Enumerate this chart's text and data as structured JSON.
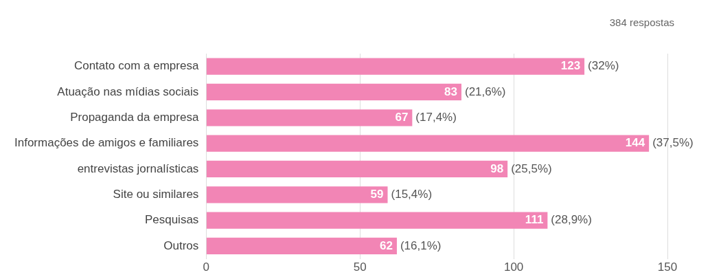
{
  "chart_data": {
    "type": "bar",
    "orientation": "horizontal",
    "categories": [
      "Contato com a empresa",
      "Atuação nas mídias sociais",
      "Propaganda da empresa",
      "Informações de amigos e familiares",
      "entrevistas jornalísticas",
      "Site ou similares",
      "Pesquisas",
      "Outros"
    ],
    "values": [
      123,
      83,
      67,
      144,
      98,
      59,
      111,
      62
    ],
    "value_labels": [
      "123",
      "83",
      "67",
      "144",
      "98",
      "59",
      "111",
      "62"
    ],
    "color": "#f285b5",
    "xlim": [
      0,
      150
    ],
    "xticks": [
      0,
      50,
      100,
      150
    ],
    "grid": "x",
    "legend": false,
    "annotations": [
      "384 respostas",
      {
        "text": "(32%)",
        "x": 123,
        "y": "Contato com a empresa"
      },
      {
        "text": "(21,6%)",
        "x": 83,
        "y": "Atuação nas mídias sociais"
      },
      {
        "text": "(17,4%)",
        "x": 67,
        "y": "Propaganda da empresa"
      },
      {
        "text": "(37,5%)",
        "x": 144,
        "y": "Informações de amigos e familiares"
      },
      {
        "text": "(25,5%)",
        "x": 98,
        "y": "entrevistas jornalísticas"
      },
      {
        "text": "(15,4%)",
        "x": 59,
        "y": "Site ou similares"
      },
      {
        "text": "(28,9%)",
        "x": 111,
        "y": "Pesquisas"
      },
      {
        "text": "(16,1%)",
        "x": 62,
        "y": "Outros"
      }
    ]
  }
}
